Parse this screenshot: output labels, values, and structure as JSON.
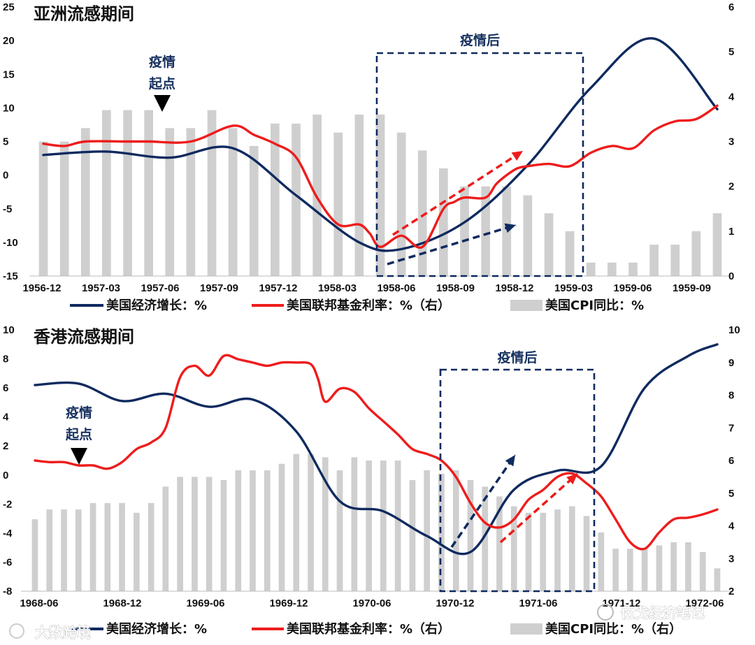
{
  "watermarks": {
    "left": "大数跨境",
    "right": "伍戈经济笔记",
    "left_icon": "logo-icon",
    "right_icon": "wechat-icon"
  },
  "legend": {
    "gdp": "美国经济增长：%",
    "ffr": "美国联邦基金利率：%（右）",
    "cpi": "美国CPI同比：%"
  },
  "colors": {
    "gdp": "#0f2a5f",
    "ffr": "#ee1c1c",
    "cpi": "#cfcfcf",
    "box": "#0f2a5f"
  },
  "chart_data": [
    {
      "type": "bar",
      "title": "亚洲流感期间",
      "legend": [
        "美国经济增长：%",
        "美国联邦基金利率：%（右）",
        "美国CPI同比：%"
      ],
      "x_ticks": [
        "1956-12",
        "1957-03",
        "1957-06",
        "1957-09",
        "1957-12",
        "1958-03",
        "1958-06",
        "1958-09",
        "1958-12",
        "1959-03",
        "1959-06",
        "1959-09"
      ],
      "y_left": {
        "min": -15,
        "max": 25,
        "ticks": [
          25,
          20,
          15,
          10,
          5,
          0,
          -5,
          -10,
          -15
        ]
      },
      "y_right": {
        "min": 0,
        "max": 6,
        "ticks": [
          6,
          5,
          4,
          3,
          2,
          1,
          0
        ]
      },
      "cpi_right_axis": [
        3.0,
        3.0,
        3.3,
        3.7,
        3.7,
        3.7,
        3.3,
        3.3,
        3.7,
        3.3,
        2.9,
        3.4,
        3.4,
        3.6,
        3.2,
        3.6,
        3.6,
        3.2,
        2.8,
        2.4,
        2.0,
        2.0,
        2.0,
        1.8,
        1.4,
        1.0,
        0.3,
        0.3,
        0.3,
        0.7,
        0.7,
        1.0,
        1.4
      ],
      "series": [
        {
          "name": "美国经济增长：%",
          "axis": "left",
          "x": [
            0,
            3,
            6,
            9,
            12,
            15,
            17,
            20,
            23,
            26,
            29,
            32
          ],
          "values": [
            3.0,
            3.5,
            2.6,
            4.0,
            -3.0,
            -10.0,
            -11.0,
            -7.0,
            1.5,
            13.0,
            20.3,
            9.8
          ]
        },
        {
          "name": "美国联邦基金利率：%（右）",
          "axis": "right",
          "x": [
            0,
            1,
            2,
            4,
            5,
            7,
            9,
            10,
            11,
            12,
            13,
            14,
            15,
            15.5,
            16,
            17,
            18,
            19,
            19.5,
            20,
            21,
            21.5,
            22,
            22.5,
            23,
            24,
            25,
            26,
            27,
            28,
            29,
            30,
            31,
            32
          ],
          "values": [
            2.95,
            2.9,
            3.0,
            3.0,
            3.0,
            3.0,
            3.35,
            3.15,
            2.95,
            2.65,
            1.75,
            1.15,
            1.15,
            0.95,
            0.65,
            0.9,
            0.65,
            1.5,
            1.65,
            1.75,
            1.75,
            2.05,
            2.25,
            2.4,
            2.45,
            2.5,
            2.45,
            2.75,
            2.9,
            2.85,
            3.25,
            3.45,
            3.5,
            3.8
          ]
        }
      ],
      "annotations": {
        "start": "疫情\n起点",
        "after": "疫情后"
      }
    },
    {
      "type": "bar",
      "title": "香港流感期间",
      "legend": [
        "美国经济增长：%",
        "美国联邦基金利率：%（右）",
        "美国CPI同比：%（右）"
      ],
      "x_ticks": [
        "1968-06",
        "1968-12",
        "1969-06",
        "1969-12",
        "1970-06",
        "1970-12",
        "1971-06",
        "1971-12",
        "1972-06"
      ],
      "y_left": {
        "min": -8,
        "max": 10,
        "ticks": [
          10,
          8,
          6,
          4,
          2,
          0,
          -2,
          -4,
          -6,
          -8
        ]
      },
      "y_right": {
        "min": 2,
        "max": 10,
        "ticks": [
          10,
          9,
          8,
          7,
          6,
          5,
          4,
          3,
          2
        ]
      },
      "cpi_right_axis": [
        4.2,
        4.5,
        4.5,
        4.5,
        4.7,
        4.7,
        4.7,
        4.4,
        4.7,
        5.2,
        5.5,
        5.5,
        5.5,
        5.4,
        5.7,
        5.7,
        5.7,
        5.9,
        6.2,
        6.2,
        6.1,
        5.7,
        6.1,
        6.0,
        6.0,
        6.0,
        5.4,
        5.7,
        5.6,
        5.7,
        5.4,
        5.2,
        4.9,
        4.6,
        4.4,
        4.4,
        4.5,
        4.6,
        4.3,
        3.8,
        3.3,
        3.3,
        3.3,
        3.4,
        3.5,
        3.5,
        3.2,
        2.7
      ],
      "series": [
        {
          "name": "美国经济增长：%",
          "axis": "left",
          "x": [
            0,
            3,
            6,
            9,
            12,
            15,
            18,
            21,
            24,
            27,
            30,
            33,
            36,
            39,
            42,
            45,
            47
          ],
          "values": [
            6.2,
            6.3,
            5.1,
            5.6,
            4.7,
            5.2,
            3.0,
            -1.8,
            -2.5,
            -4.2,
            -5.3,
            -1.0,
            0.3,
            0.6,
            6.0,
            8.2,
            9.0
          ]
        },
        {
          "name": "美国联邦基金利率：%（右）",
          "axis": "right",
          "x": [
            0,
            1,
            2,
            3,
            4,
            5,
            6,
            7,
            8,
            9,
            10,
            11,
            12,
            13,
            14,
            15,
            16,
            17,
            18,
            19,
            19.5,
            20,
            21,
            22,
            23,
            24,
            25,
            26,
            27,
            28,
            29,
            30,
            31,
            32,
            33,
            34,
            35,
            36,
            37,
            38,
            39,
            40,
            41,
            42,
            43,
            44,
            45,
            46,
            47
          ],
          "values": [
            6.0,
            5.95,
            5.95,
            5.85,
            5.85,
            5.75,
            5.95,
            6.35,
            6.55,
            7.0,
            8.55,
            8.9,
            8.6,
            9.2,
            9.1,
            9.0,
            8.9,
            9.0,
            9.0,
            8.95,
            8.5,
            7.8,
            8.2,
            8.1,
            7.6,
            7.2,
            6.8,
            6.35,
            6.2,
            6.0,
            5.5,
            4.7,
            4.1,
            3.95,
            4.2,
            4.8,
            5.1,
            5.5,
            5.6,
            5.3,
            4.9,
            4.2,
            3.5,
            3.3,
            3.8,
            4.2,
            4.25,
            4.35,
            4.5
          ]
        }
      ],
      "annotations": {
        "start": "疫情\n起点",
        "after": "疫情后"
      }
    }
  ]
}
